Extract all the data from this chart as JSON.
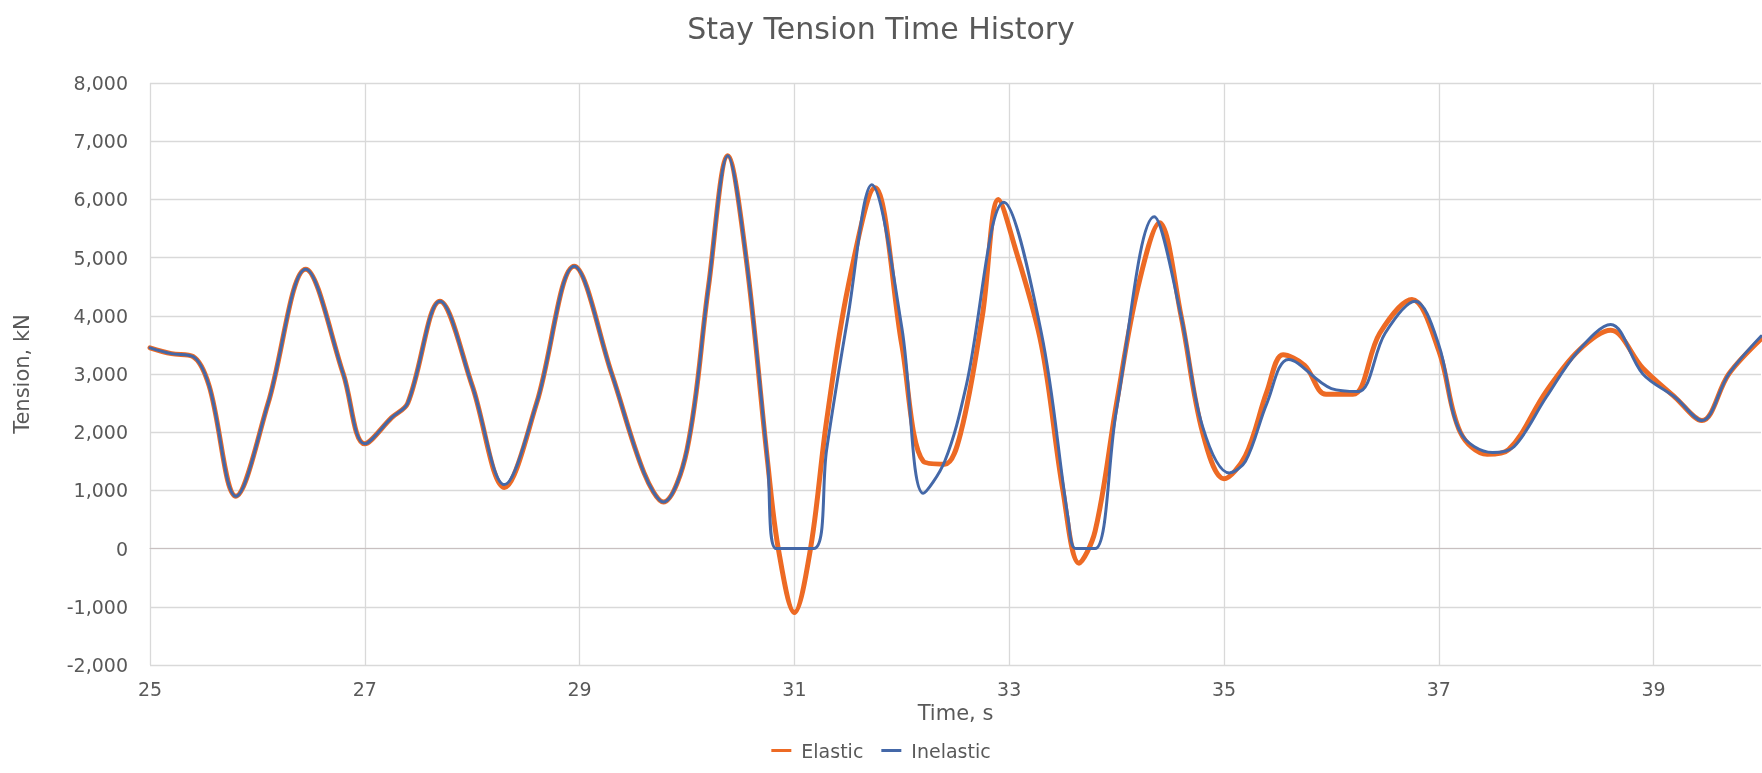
{
  "chart_data": {
    "type": "line",
    "title": "Stay Tension Time History",
    "xlabel": "Time, s",
    "ylabel": "Tension, kN",
    "xlim": [
      25,
      40
    ],
    "xticks": [
      25,
      27,
      29,
      31,
      33,
      35,
      37,
      39
    ],
    "ylim": [
      -2000,
      8000
    ],
    "yticks": [
      {
        "value": -2000,
        "label": "-2,000"
      },
      {
        "value": -1000,
        "label": "-1,000"
      },
      0,
      {
        "value": 1000,
        "label": "1,000"
      },
      {
        "value": 2000,
        "label": "2,000"
      },
      {
        "value": 3000,
        "label": "3,000"
      },
      {
        "value": 4000,
        "label": "4,000"
      },
      {
        "value": 5000,
        "label": "5,000"
      },
      {
        "value": 6000,
        "label": "6,000"
      },
      {
        "value": 7000,
        "label": "7,000"
      },
      {
        "value": 8000,
        "label": "8,000"
      }
    ],
    "grid": true,
    "legend": "bottom",
    "marker": "none",
    "line_style": "solid",
    "series": [
      {
        "name": "Elastic",
        "color": "#ed6a24",
        "x": [
          25,
          25.2,
          25.4,
          25.55,
          25.8,
          26.1,
          26.45,
          26.8,
          27,
          27.25,
          27.4,
          27.7,
          28,
          28.3,
          28.6,
          28.95,
          29.3,
          29.6,
          29.78,
          30,
          30.2,
          30.38,
          30.55,
          30.75,
          30.85,
          31,
          31.15,
          31.3,
          31.5,
          31.75,
          32,
          32.2,
          32.4,
          32.55,
          32.75,
          32.9,
          33.05,
          33.3,
          33.5,
          33.65,
          33.8,
          34,
          34.2,
          34.4,
          34.6,
          34.8,
          35,
          35.2,
          35.4,
          35.55,
          35.75,
          35.95,
          36.2,
          36.45,
          36.75,
          37,
          37.2,
          37.45,
          37.65,
          38,
          38.3,
          38.6,
          38.9,
          39.2,
          39.45,
          39.7,
          40
        ],
        "values": [
          3450,
          3350,
          3300,
          2800,
          900,
          2500,
          4800,
          3000,
          1800,
          2250,
          2500,
          4250,
          2800,
          1050,
          2500,
          4850,
          3000,
          1300,
          800,
          1700,
          4500,
          6750,
          5000,
          1500,
          0,
          -1100,
          0,
          2200,
          4500,
          6200,
          3500,
          1500,
          1450,
          2000,
          4000,
          6000,
          5200,
          3500,
          1000,
          -250,
          300,
          2500,
          4500,
          5600,
          4000,
          2000,
          1200,
          1600,
          2700,
          3330,
          3150,
          2650,
          2650,
          3700,
          4280,
          3400,
          2000,
          1620,
          1700,
          2700,
          3400,
          3750,
          3100,
          2600,
          2200,
          3000,
          3600
        ]
      },
      {
        "name": "Inelastic",
        "color": "#4468a8",
        "x": [
          25,
          25.2,
          25.4,
          25.55,
          25.8,
          26.1,
          26.45,
          26.8,
          27,
          27.25,
          27.4,
          27.7,
          28,
          28.3,
          28.6,
          28.95,
          29.3,
          29.6,
          29.78,
          30,
          30.2,
          30.38,
          30.55,
          30.75,
          30.83,
          31.18,
          31.3,
          31.5,
          31.72,
          32,
          32.2,
          32.4,
          32.6,
          32.95,
          33.3,
          33.55,
          33.62,
          33.8,
          34,
          34.35,
          34.6,
          34.8,
          35.05,
          35.2,
          35.4,
          35.6,
          36,
          36.25,
          36.5,
          36.78,
          37,
          37.2,
          37.5,
          37.7,
          38,
          38.3,
          38.6,
          38.9,
          39.2,
          39.45,
          39.7,
          40
        ],
        "values": [
          3450,
          3350,
          3300,
          2800,
          900,
          2500,
          4800,
          3000,
          1800,
          2250,
          2500,
          4250,
          2800,
          1100,
          2500,
          4850,
          3000,
          1300,
          800,
          1700,
          4500,
          6750,
          5000,
          1500,
          0,
          0,
          1700,
          4000,
          6250,
          3800,
          950,
          1500,
          2800,
          5950,
          3700,
          500,
          0,
          0,
          2400,
          5700,
          4000,
          2100,
          1300,
          1500,
          2500,
          3250,
          2750,
          2700,
          3700,
          4250,
          3500,
          2000,
          1650,
          1750,
          2600,
          3400,
          3850,
          3000,
          2600,
          2200,
          3000,
          3650
        ]
      }
    ]
  }
}
